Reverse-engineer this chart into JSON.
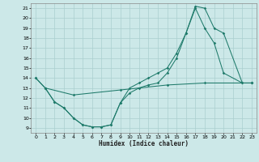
{
  "xlabel": "Humidex (Indice chaleur)",
  "bg_color": "#cce8e8",
  "grid_color": "#aacfcf",
  "line_color": "#1e7a6a",
  "xlim": [
    -0.5,
    23.5
  ],
  "ylim": [
    8.5,
    21.5
  ],
  "yticks": [
    9,
    10,
    11,
    12,
    13,
    14,
    15,
    16,
    17,
    18,
    19,
    20,
    21
  ],
  "xticks": [
    0,
    1,
    2,
    3,
    4,
    5,
    6,
    7,
    8,
    9,
    10,
    11,
    12,
    13,
    14,
    15,
    16,
    17,
    18,
    19,
    20,
    21,
    22,
    23
  ],
  "curve1_x": [
    0,
    1,
    2,
    3,
    4,
    5,
    6,
    7,
    8,
    9,
    10,
    11,
    12,
    13,
    14,
    15,
    16,
    17,
    18,
    19,
    20,
    22,
    23
  ],
  "curve1_y": [
    14.0,
    13.0,
    11.6,
    11.0,
    10.0,
    9.3,
    9.1,
    9.1,
    9.3,
    11.5,
    13.0,
    13.5,
    14.0,
    14.5,
    15.0,
    16.5,
    18.5,
    21.0,
    19.0,
    17.5,
    14.5,
    13.5,
    13.5
  ],
  "curve2_x": [
    0,
    1,
    2,
    3,
    4,
    5,
    6,
    7,
    8,
    9,
    10,
    11,
    12,
    13,
    14,
    15,
    16,
    17,
    18,
    19,
    20,
    22,
    23
  ],
  "curve2_y": [
    14.0,
    13.0,
    11.6,
    11.0,
    10.0,
    9.3,
    9.1,
    9.1,
    9.3,
    11.5,
    12.5,
    13.0,
    13.3,
    13.5,
    14.5,
    16.0,
    18.5,
    21.2,
    21.0,
    19.0,
    18.5,
    13.5,
    13.5
  ],
  "curve3_x": [
    1,
    4,
    9,
    14,
    18,
    23
  ],
  "curve3_y": [
    13.0,
    12.3,
    12.8,
    13.3,
    13.5,
    13.5
  ]
}
